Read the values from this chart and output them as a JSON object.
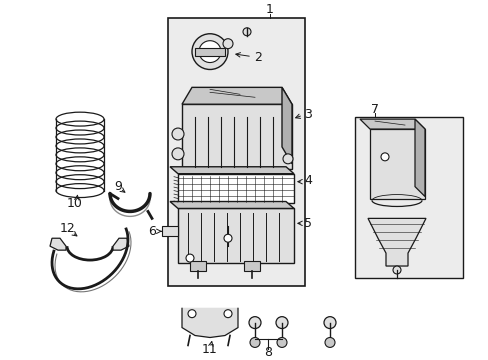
{
  "bg_color": "#ffffff",
  "lc": "#1a1a1a",
  "fill_light": "#e0e0e0",
  "fill_med": "#c8c8c8",
  "fill_dark": "#b0b0b0",
  "fill_box": "#ececec",
  "figsize": [
    4.89,
    3.6
  ],
  "dpi": 100
}
